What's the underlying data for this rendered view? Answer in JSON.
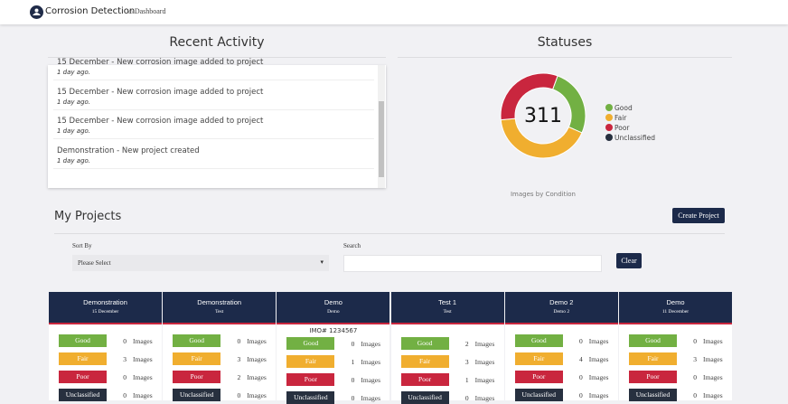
{
  "nav": {
    "brand": "Corrosion Detection",
    "link": "Dashboard"
  },
  "activity": {
    "title": "Recent Activity",
    "items": [
      {
        "text": "15 December - New corrosion image added to project",
        "time": "1 day ago."
      },
      {
        "text": "15 December - New corrosion image added to project",
        "time": "1 day ago."
      },
      {
        "text": "15 December - New corrosion image added to project",
        "time": "1 day ago."
      },
      {
        "text": "Demonstration - New project created",
        "time": "1 day ago."
      }
    ]
  },
  "statuses": {
    "title": "Statuses",
    "total": 311,
    "caption": "Images by Condition",
    "chart_data": {
      "type": "pie",
      "categories": [
        "Good",
        "Fair",
        "Poor",
        "Unclassified"
      ],
      "values": [
        81,
        130,
        100,
        0
      ],
      "colors": [
        "#72b043",
        "#f0ae2f",
        "#c9263e",
        "#27303f"
      ]
    }
  },
  "projects": {
    "title": "My Projects",
    "create_button": "Create Project",
    "sort_label": "Sort By",
    "sort_placeholder": "Please Select",
    "search_label": "Search",
    "clear_button": "Clear",
    "conditions": [
      "Good",
      "Fair",
      "Poor",
      "Unclassified"
    ],
    "unit": "Images",
    "cards": [
      {
        "title": "Demonstration",
        "subtitle": "15 December",
        "counts": [
          0,
          3,
          0,
          0
        ]
      },
      {
        "title": "Demonstration",
        "subtitle": "Test",
        "counts": [
          0,
          3,
          2,
          0
        ]
      },
      {
        "title": "Demo",
        "subtitle": "Demo",
        "imo": "IMO# 1234567",
        "counts": [
          0,
          1,
          0,
          0
        ]
      },
      {
        "title": "Test 1",
        "subtitle": "Test",
        "counts": [
          2,
          3,
          1,
          0
        ]
      },
      {
        "title": "Demo 2",
        "subtitle": "Demo 2",
        "counts": [
          0,
          4,
          0,
          0
        ]
      },
      {
        "title": "Demo",
        "subtitle": "11 December",
        "counts": [
          0,
          3,
          0,
          0
        ]
      }
    ]
  }
}
